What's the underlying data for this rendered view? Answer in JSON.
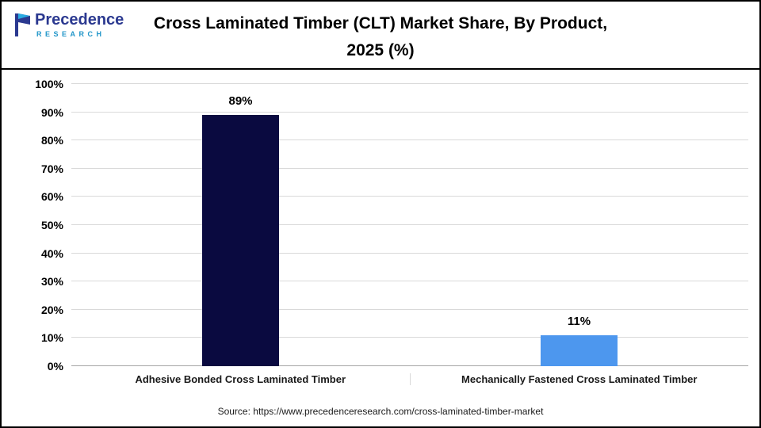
{
  "header": {
    "logo": {
      "name": "Precedence",
      "subtitle": "RESEARCH"
    },
    "title_line1": "Cross Laminated Timber (CLT)  Market Share, By Product,",
    "title_line2": "2025 (%)"
  },
  "chart_data": {
    "type": "bar",
    "title": "Cross Laminated Timber (CLT) Market Share, By Product, 2025 (%)",
    "categories": [
      "Adhesive Bonded Cross Laminated Timber",
      "Mechanically Fastened Cross Laminated Timber"
    ],
    "values": [
      89,
      11
    ],
    "value_labels": [
      "89%",
      "11%"
    ],
    "bar_colors": [
      "#0a0a40",
      "#4d97ee"
    ],
    "bar_names": [
      "bar-adhesive-bonded-clt",
      "bar-mechanically-fastened-clt"
    ],
    "xlabel": "",
    "ylabel": "",
    "ylim": [
      0,
      100
    ],
    "ytick_step": 10,
    "ytick_labels": [
      "0%",
      "10%",
      "20%",
      "30%",
      "40%",
      "50%",
      "60%",
      "70%",
      "80%",
      "90%",
      "100%"
    ],
    "grid": true,
    "legend": false
  },
  "footer": {
    "source": "Source: https://www.precedenceresearch.com/cross-laminated-timber-market"
  }
}
